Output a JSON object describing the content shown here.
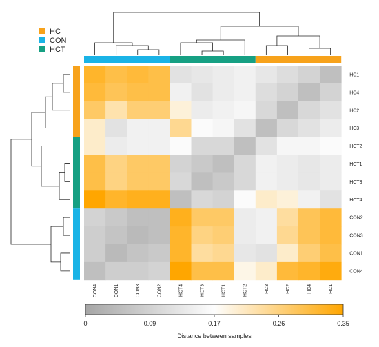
{
  "chart_data": {
    "type": "heatmap",
    "title": "",
    "rows": [
      "HC1",
      "HC4",
      "HC2",
      "HC3",
      "HCT2",
      "HCT1",
      "HCT3",
      "HCT4",
      "CON2",
      "CON3",
      "CON1",
      "CON4"
    ],
    "columns": [
      "CON4",
      "CON1",
      "CON3",
      "CON2",
      "HCT4",
      "HCT3",
      "HCT1",
      "HCT2",
      "HC3",
      "HC2",
      "HC4",
      "HC1"
    ],
    "values": [
      [
        0.32,
        0.3,
        0.31,
        0.3,
        0.12,
        0.13,
        0.14,
        0.15,
        0.13,
        0.11,
        0.09,
        0.05
      ],
      [
        0.31,
        0.29,
        0.3,
        0.3,
        0.15,
        0.12,
        0.14,
        0.15,
        0.11,
        0.09,
        0.05,
        0.09
      ],
      [
        0.28,
        0.23,
        0.27,
        0.27,
        0.2,
        0.14,
        0.15,
        0.16,
        0.1,
        0.05,
        0.1,
        0.12
      ],
      [
        0.21,
        0.12,
        0.15,
        0.15,
        0.25,
        0.17,
        0.16,
        0.12,
        0.05,
        0.1,
        0.12,
        0.14
      ],
      [
        0.21,
        0.14,
        0.15,
        0.15,
        0.17,
        0.1,
        0.1,
        0.05,
        0.12,
        0.16,
        0.16,
        0.17
      ],
      [
        0.3,
        0.26,
        0.28,
        0.28,
        0.09,
        0.07,
        0.05,
        0.1,
        0.15,
        0.14,
        0.13,
        0.14
      ],
      [
        0.3,
        0.26,
        0.28,
        0.28,
        0.1,
        0.05,
        0.07,
        0.1,
        0.15,
        0.14,
        0.13,
        0.14
      ],
      [
        0.35,
        0.32,
        0.33,
        0.33,
        0.05,
        0.1,
        0.09,
        0.17,
        0.21,
        0.2,
        0.15,
        0.12
      ],
      [
        0.09,
        0.07,
        0.05,
        0.05,
        0.33,
        0.28,
        0.28,
        0.14,
        0.15,
        0.24,
        0.29,
        0.31
      ],
      [
        0.08,
        0.06,
        0.04,
        0.05,
        0.32,
        0.26,
        0.27,
        0.14,
        0.15,
        0.25,
        0.29,
        0.31
      ],
      [
        0.08,
        0.04,
        0.06,
        0.07,
        0.32,
        0.24,
        0.25,
        0.13,
        0.12,
        0.21,
        0.27,
        0.3
      ],
      [
        0.05,
        0.08,
        0.08,
        0.09,
        0.35,
        0.3,
        0.3,
        0.19,
        0.21,
        0.31,
        0.32,
        0.34
      ]
    ],
    "row_groups": [
      "HC",
      "HC",
      "HC",
      "HC",
      "HCT",
      "HCT",
      "HCT",
      "HCT",
      "CON",
      "CON",
      "CON",
      "CON"
    ],
    "column_groups": [
      "CON",
      "CON",
      "CON",
      "CON",
      "HCT",
      "HCT",
      "HCT",
      "HCT",
      "HC",
      "HC",
      "HC",
      "HC"
    ],
    "legend": [
      {
        "label": "HC",
        "color": "#f7a21b"
      },
      {
        "label": "CON",
        "color": "#1ab3e6"
      },
      {
        "label": "HCT",
        "color": "#16a083"
      }
    ],
    "color_scale": {
      "label": "Distance between samples",
      "range": [
        0,
        0.35
      ],
      "ticks": [
        "0",
        "0.09",
        "0.17",
        "0.26",
        "0.35"
      ],
      "colors": [
        "#a6a6a6",
        "#fdfdfd",
        "#ffa600"
      ]
    },
    "legend_position": "top-left",
    "dendrograms": "rows and columns"
  }
}
